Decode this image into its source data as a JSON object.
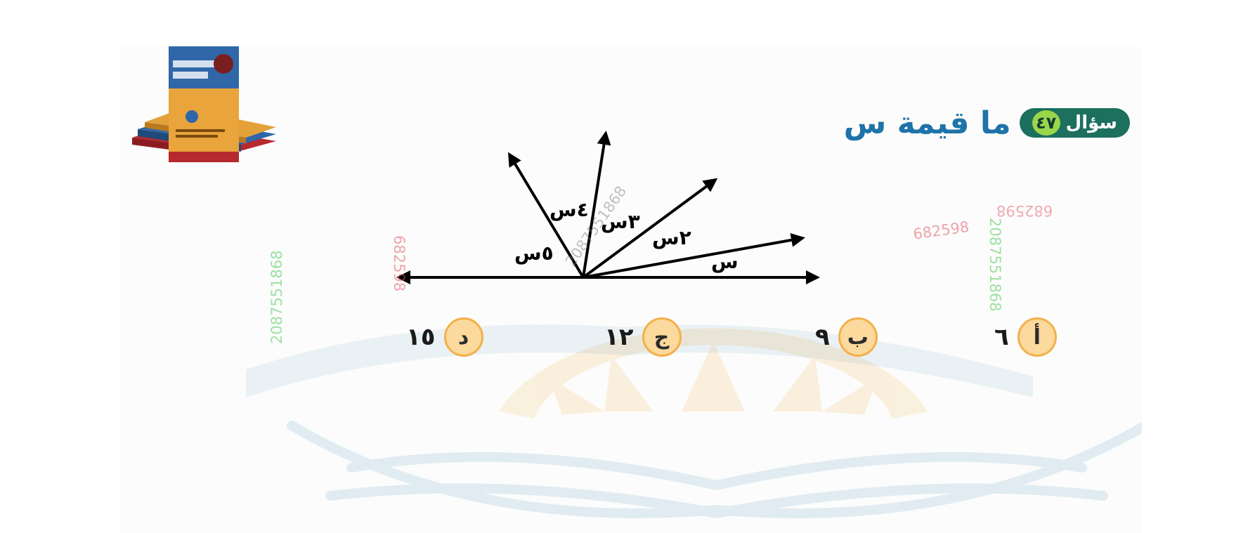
{
  "question": {
    "label": "سؤال",
    "number": "٤٧",
    "text": "ما قيمة س"
  },
  "figure": {
    "angle_labels": [
      "س",
      "٢س",
      "٣س",
      "٤س",
      "٥س"
    ]
  },
  "choices": [
    {
      "letter": "أ",
      "value": "٦"
    },
    {
      "letter": "ب",
      "value": "٩"
    },
    {
      "letter": "ج",
      "value": "١٢"
    },
    {
      "letter": "د",
      "value": "١٥"
    }
  ],
  "watermarks": {
    "phone_green": "2087551868",
    "code_pink": "682598",
    "phone_gray": "2087551868",
    "code_pink_small": "682598"
  },
  "colors": {
    "header_pill": "#1d6f5e",
    "number_badge": "#9ad64a",
    "question_text": "#1e73a8",
    "choice_circle": "#fcd99c",
    "choice_border": "#f3b04b"
  }
}
